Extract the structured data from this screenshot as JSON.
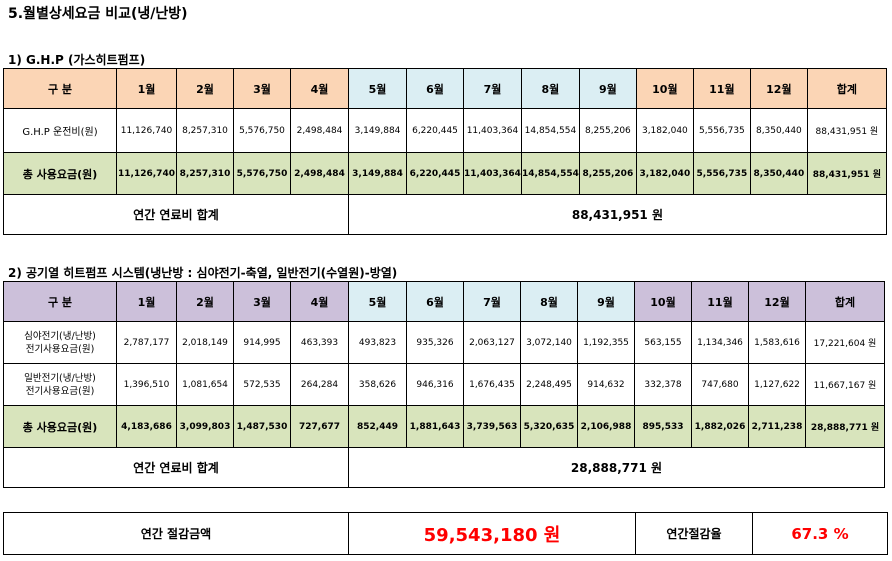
{
  "title": "5.월별상세요금 비교(냉/난방)",
  "section1": {
    "heading": "1) G.H.P (가스히트펌프)",
    "header": {
      "label": "구 분",
      "months": [
        "1월",
        "2월",
        "3월",
        "4월",
        "5월",
        "6월",
        "7월",
        "8월",
        "9월",
        "10월",
        "11월",
        "12월"
      ],
      "total": "합계"
    },
    "rows": [
      {
        "label": "G.H.P 운전비(원)",
        "values": [
          "11,126,740",
          "8,257,310",
          "5,576,750",
          "2,498,484",
          "3,149,884",
          "6,220,445",
          "11,403,364",
          "14,854,554",
          "8,255,206",
          "3,182,040",
          "5,556,735",
          "8,350,440"
        ],
        "total": "88,431,951 원"
      }
    ],
    "sum_row": {
      "label": "총 사용요금(원)",
      "values": [
        "11,126,740",
        "8,257,310",
        "5,576,750",
        "2,498,484",
        "3,149,884",
        "6,220,445",
        "11,403,364",
        "14,854,554",
        "8,255,206",
        "3,182,040",
        "5,556,735",
        "8,350,440"
      ],
      "total": "88,431,951 원"
    },
    "annual_label": "연간 연료비 합계",
    "annual_value": "88,431,951 원"
  },
  "section2": {
    "heading": "2) 공기열 히트펌프 시스템(냉난방 : 심야전기-축열, 일반전기(수열원)-방열)",
    "header": {
      "label": "구 분",
      "months": [
        "1월",
        "2월",
        "3월",
        "4월",
        "5월",
        "6월",
        "7월",
        "8월",
        "9월",
        "10월",
        "11월",
        "12월"
      ],
      "total": "합계"
    },
    "rows": [
      {
        "label_line1": "심야전기(냉/난방)",
        "label_line2": "전기사용요금(원)",
        "values": [
          "2,787,177",
          "2,018,149",
          "914,995",
          "463,393",
          "493,823",
          "935,326",
          "2,063,127",
          "3,072,140",
          "1,192,355",
          "563,155",
          "1,134,346",
          "1,583,616"
        ],
        "total": "17,221,604 원"
      },
      {
        "label_line1": "일반전기(냉/난방)",
        "label_line2": "전기사용요금(원)",
        "values": [
          "1,396,510",
          "1,081,654",
          "572,535",
          "264,284",
          "358,626",
          "946,316",
          "1,676,435",
          "2,248,495",
          "914,632",
          "332,378",
          "747,680",
          "1,127,622"
        ],
        "total": "11,667,167 원"
      }
    ],
    "sum_row": {
      "label": "총 사용요금(원)",
      "values": [
        "4,183,686",
        "3,099,803",
        "1,487,530",
        "727,677",
        "852,449",
        "1,881,643",
        "3,739,563",
        "5,320,635",
        "2,106,988",
        "895,533",
        "1,882,026",
        "2,711,238"
      ],
      "total": "28,888,771 원"
    },
    "annual_label": "연간 연료비 합계",
    "annual_value": "28,888,771 원"
  },
  "savings": {
    "label": "연간 절감금액",
    "value": "59,543,180 원",
    "rate_label": "연간절감율",
    "rate_value": "67.3 %",
    "accent_color": "#ff0000"
  }
}
